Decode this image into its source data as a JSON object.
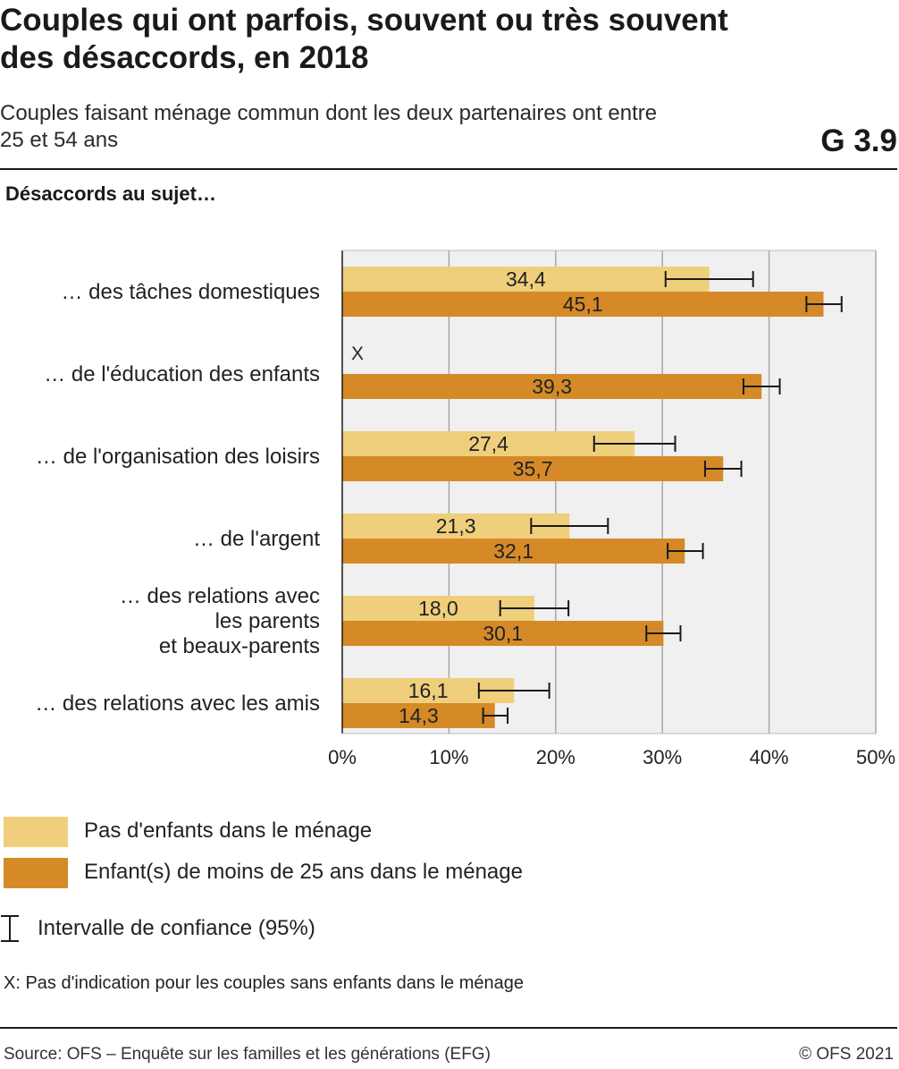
{
  "header": {
    "title_line1": "Couples qui ont parfois, souvent ou très souvent",
    "title_line2": "des désaccords, en 2018",
    "subtitle_line1": "Couples faisant ménage commun dont les deux partenaires ont entre",
    "subtitle_line2": "25 et 54 ans",
    "graphic_number": "G 3.9",
    "section_label": "Désaccords au sujet…"
  },
  "chart_data": {
    "type": "bar",
    "orientation": "horizontal",
    "categories": [
      [
        "… des tâches domestiques"
      ],
      [
        "… de l'éducation des enfants"
      ],
      [
        "… de l'organisation des loisirs"
      ],
      [
        "… de l'argent"
      ],
      [
        "… des relations avec",
        "les parents",
        "et beaux-parents"
      ],
      [
        "… des relations avec les amis"
      ]
    ],
    "series": [
      {
        "name": "Pas d'enfants dans le ménage",
        "color": "#efcf7b",
        "values": [
          34.4,
          null,
          27.4,
          21.3,
          18.0,
          16.1
        ],
        "labels": [
          "34,4",
          "X",
          "27,4",
          "21,3",
          "18,0",
          "16,1"
        ],
        "ci_low": [
          30.3,
          null,
          23.6,
          17.7,
          14.8,
          12.8
        ],
        "ci_high": [
          38.5,
          null,
          31.2,
          24.9,
          21.2,
          19.4
        ]
      },
      {
        "name": "Enfant(s) de moins de 25 ans dans le ménage",
        "color": "#d58a27",
        "values": [
          45.1,
          39.3,
          35.7,
          32.1,
          30.1,
          14.3
        ],
        "labels": [
          "45,1",
          "39,3",
          "35,7",
          "32,1",
          "30,1",
          "14,3"
        ],
        "ci_low": [
          43.5,
          37.6,
          34.0,
          30.5,
          28.5,
          13.2
        ],
        "ci_high": [
          46.8,
          41.0,
          37.4,
          33.8,
          31.7,
          15.5
        ]
      }
    ],
    "xlim": [
      0,
      50
    ],
    "xticks": [
      0,
      10,
      20,
      30,
      40,
      50
    ],
    "xtick_labels": [
      "0%",
      "10%",
      "20%",
      "30%",
      "40%",
      "50%"
    ],
    "grid": true,
    "plot_background": "#f0f0f0",
    "grid_color": "#a8a8a8"
  },
  "legend": {
    "items": [
      {
        "label": "Pas d'enfants dans le ménage",
        "color": "#efcf7b"
      },
      {
        "label": "Enfant(s) de moins de 25 ans dans le ménage",
        "color": "#d58a27"
      }
    ],
    "ci_label": "Intervalle de confiance (95%)",
    "ci_icon": "error-bar-icon"
  },
  "footer": {
    "note": "X:  Pas d'indication pour les couples sans enfants dans le ménage",
    "source": "Source: OFS – Enquête sur les familles et les générations (EFG)",
    "copyright": "© OFS 2021"
  }
}
